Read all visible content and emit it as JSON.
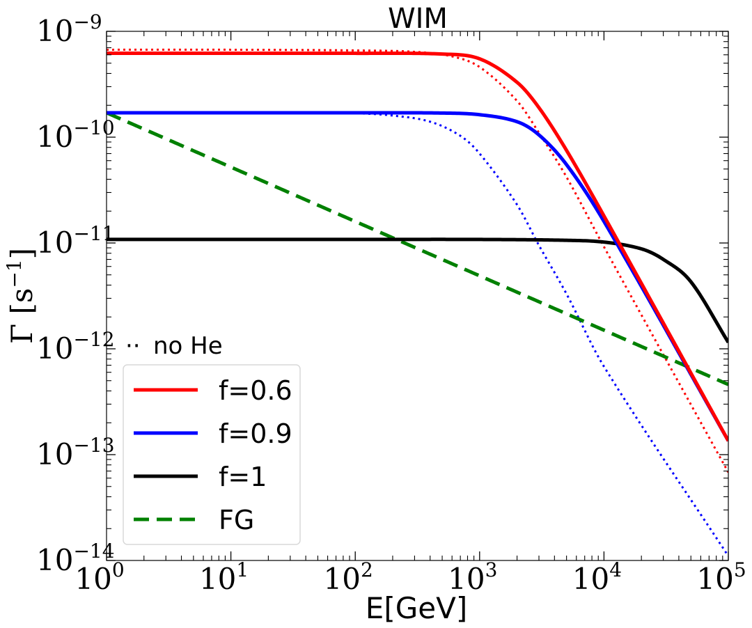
{
  "chart_data": {
    "type": "line",
    "title": "WIM",
    "xlabel": "E[GeV]",
    "ylabel": "Γ [s",
    "ylabel_unit_exp": "−1",
    "ylabel_close": "]",
    "xscale": "log",
    "yscale": "log",
    "xlim": [
      1,
      100000
    ],
    "ylim": [
      1e-14,
      1e-09
    ],
    "x_ticks": [
      {
        "value": 1,
        "base": "10",
        "exp": "0"
      },
      {
        "value": 10,
        "base": "10",
        "exp": "1"
      },
      {
        "value": 100,
        "base": "10",
        "exp": "2"
      },
      {
        "value": 1000,
        "base": "10",
        "exp": "3"
      },
      {
        "value": 10000,
        "base": "10",
        "exp": "4"
      },
      {
        "value": 100000,
        "base": "10",
        "exp": "5"
      }
    ],
    "y_ticks": [
      {
        "value": 1e-09,
        "base": "10",
        "exp": "−9"
      },
      {
        "value": 1e-10,
        "base": "10",
        "exp": "−10"
      },
      {
        "value": 1e-11,
        "base": "10",
        "exp": "−11"
      },
      {
        "value": 1e-12,
        "base": "10",
        "exp": "−12"
      },
      {
        "value": 1e-13,
        "base": "10",
        "exp": "−13"
      },
      {
        "value": 1e-14,
        "base": "10",
        "exp": "−14"
      }
    ],
    "series": [
      {
        "name": "f=0.6",
        "color": "#ff0000",
        "style": "solid",
        "x": [
          1,
          10,
          100,
          500,
          1000,
          2000,
          3000,
          5000,
          10000,
          100000
        ],
        "y": [
          6.2e-10,
          6.2e-10,
          6.2e-10,
          6.1e-10,
          5.5e-10,
          3.3e-10,
          1.9e-10,
          7.5e-11,
          1.8e-11,
          1.35e-13
        ]
      },
      {
        "name": "f=0.9",
        "color": "#0000ff",
        "style": "solid",
        "x": [
          1,
          10,
          100,
          500,
          1000,
          2000,
          3000,
          5000,
          10000,
          100000
        ],
        "y": [
          1.7e-10,
          1.7e-10,
          1.7e-10,
          1.69e-10,
          1.63e-10,
          1.4e-10,
          1.05e-10,
          5.5e-11,
          1.6e-11,
          1.35e-13
        ]
      },
      {
        "name": "f=1",
        "color": "#000000",
        "style": "solid",
        "x": [
          1,
          10,
          100,
          1000,
          5000,
          10000,
          20000,
          30000,
          50000,
          100000
        ],
        "y": [
          1.08e-11,
          1.08e-11,
          1.08e-11,
          1.08e-11,
          1.06e-11,
          1.02e-11,
          8.8e-12,
          7e-12,
          4.3e-12,
          1.15e-12
        ]
      },
      {
        "name": "FG",
        "color": "#008000",
        "style": "dashed",
        "x": [
          1,
          100000
        ],
        "y": [
          1.7e-10,
          4.6e-13
        ]
      },
      {
        "name": "f=0.6 no He",
        "color": "#ff0000",
        "style": "dotted",
        "in_legend": false,
        "x": [
          1,
          10,
          100,
          300,
          600,
          1000,
          2000,
          3000,
          5000,
          10000,
          100000
        ],
        "y": [
          6.7e-10,
          6.7e-10,
          6.6e-10,
          6.4e-10,
          5.8e-10,
          4.6e-10,
          2.2e-10,
          1.1e-10,
          4.2e-11,
          9.2e-12,
          6.8e-14
        ]
      },
      {
        "name": "f=0.9 no He",
        "color": "#0000ff",
        "style": "dotted",
        "in_legend": false,
        "x": [
          1,
          10,
          100,
          200,
          400,
          700,
          1000,
          2000,
          3000,
          5000,
          10000,
          100000
        ],
        "y": [
          1.72e-10,
          1.72e-10,
          1.68e-10,
          1.6e-10,
          1.4e-10,
          1.03e-10,
          7e-11,
          2.3e-11,
          9.5e-12,
          3.3e-12,
          6.8e-13,
          1.1e-14
        ]
      }
    ],
    "legend": {
      "placement": "lower-left",
      "note_symbol": "··",
      "note_text": "no He",
      "entries": [
        {
          "label": "f=0.6",
          "color": "#ff0000",
          "style": "solid"
        },
        {
          "label": "f=0.9",
          "color": "#0000ff",
          "style": "solid"
        },
        {
          "label": "f=1",
          "color": "#000000",
          "style": "solid"
        },
        {
          "label": "FG",
          "color": "#008000",
          "style": "dashed"
        }
      ]
    }
  }
}
